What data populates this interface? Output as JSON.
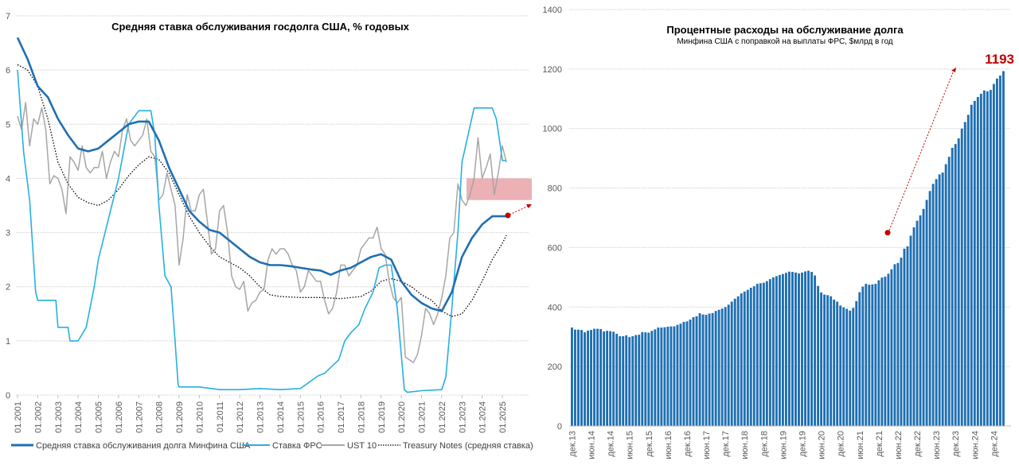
{
  "chart_data": [
    {
      "type": "line",
      "title": "Средняя ставка обслуживания госдолга США, % годовых",
      "xlabel": "",
      "ylabel": "",
      "ylim": [
        0,
        7
      ],
      "yticks": [
        "0",
        "1",
        "2",
        "3",
        "4",
        "5",
        "6",
        "7"
      ],
      "xlim": [
        2001.0,
        2025.6
      ],
      "xticks": [
        "01.2001",
        "01.2002",
        "01.2003",
        "01.2004",
        "01.2005",
        "01.2006",
        "01.2007",
        "01.2008",
        "01.2009",
        "01.2010",
        "01.2011",
        "01.2012",
        "01.2013",
        "01.2014",
        "01.2015",
        "01.2016",
        "01.2017",
        "01.2018",
        "01.2019",
        "01.2020",
        "01.2021",
        "01.2022",
        "01.2023",
        "01.2024",
        "01.2025"
      ],
      "grid": true,
      "legend_position": "bottom",
      "series": [
        {
          "name": "Средняя ставка обслуживания долга Минфина США",
          "color": "#1f6fb2",
          "style": "solid-thick",
          "x": [
            2001.0,
            2001.5,
            2002.0,
            2002.5,
            2003.0,
            2003.5,
            2004.0,
            2004.5,
            2005.0,
            2005.5,
            2006.0,
            2006.5,
            2007.0,
            2007.5,
            2008.0,
            2008.5,
            2009.0,
            2009.5,
            2010.0,
            2010.5,
            2011.0,
            2011.5,
            2012.0,
            2012.5,
            2013.0,
            2013.5,
            2014.0,
            2014.5,
            2015.0,
            2015.5,
            2016.0,
            2016.5,
            2017.0,
            2017.5,
            2018.0,
            2018.5,
            2019.0,
            2019.5,
            2020.0,
            2020.5,
            2021.0,
            2021.5,
            2022.0,
            2022.5,
            2023.0,
            2023.5,
            2024.0,
            2024.5,
            2025.0,
            2025.2
          ],
          "y": [
            6.6,
            6.2,
            5.7,
            5.5,
            5.1,
            4.8,
            4.55,
            4.5,
            4.55,
            4.7,
            4.85,
            5.0,
            5.05,
            5.05,
            4.7,
            4.2,
            3.8,
            3.4,
            3.2,
            3.05,
            3.0,
            2.85,
            2.7,
            2.55,
            2.45,
            2.4,
            2.4,
            2.38,
            2.35,
            2.32,
            2.3,
            2.22,
            2.3,
            2.35,
            2.45,
            2.55,
            2.6,
            2.5,
            2.1,
            1.85,
            1.7,
            1.6,
            1.55,
            1.9,
            2.55,
            2.9,
            3.15,
            3.3,
            3.3,
            3.3
          ]
        },
        {
          "name": "Ставка ФРС",
          "color": "#26b0e0",
          "style": "solid",
          "x": [
            2001.0,
            2001.3,
            2001.6,
            2001.9,
            2002.0,
            2002.5,
            2002.9,
            2003.0,
            2003.5,
            2003.6,
            2004.0,
            2004.4,
            2004.8,
            2005.0,
            2005.5,
            2006.0,
            2006.5,
            2007.0,
            2007.6,
            2007.8,
            2008.0,
            2008.3,
            2008.6,
            2008.8,
            2008.95,
            2009.0,
            2010.0,
            2011.0,
            2012.0,
            2013.0,
            2014.0,
            2015.0,
            2015.9,
            2016.2,
            2016.9,
            2017.2,
            2017.5,
            2017.9,
            2018.2,
            2018.6,
            2018.9,
            2019.2,
            2019.5,
            2019.8,
            2020.15,
            2020.3,
            2021.0,
            2022.0,
            2022.2,
            2022.5,
            2022.8,
            2023.0,
            2023.3,
            2023.6,
            2024.5,
            2024.7,
            2024.9,
            2025.0,
            2025.2
          ],
          "y": [
            6.0,
            4.5,
            3.6,
            1.9,
            1.75,
            1.75,
            1.75,
            1.25,
            1.25,
            1.0,
            1.0,
            1.25,
            2.0,
            2.5,
            3.25,
            4.0,
            5.0,
            5.25,
            5.25,
            4.8,
            3.5,
            2.2,
            2.0,
            1.0,
            0.2,
            0.15,
            0.15,
            0.1,
            0.1,
            0.12,
            0.1,
            0.12,
            0.36,
            0.4,
            0.65,
            1.0,
            1.15,
            1.3,
            1.6,
            1.9,
            2.35,
            2.4,
            2.4,
            1.6,
            0.1,
            0.05,
            0.08,
            0.1,
            0.33,
            1.6,
            3.0,
            4.3,
            4.8,
            5.3,
            5.3,
            5.1,
            4.6,
            4.33,
            4.33
          ]
        },
        {
          "name": "UST 10",
          "color": "#a6a6a6",
          "style": "solid",
          "x": [
            2001.0,
            2001.2,
            2001.4,
            2001.6,
            2001.8,
            2002.0,
            2002.2,
            2002.4,
            2002.6,
            2002.8,
            2003.0,
            2003.2,
            2003.4,
            2003.6,
            2003.8,
            2004.0,
            2004.2,
            2004.4,
            2004.6,
            2004.8,
            2005.0,
            2005.2,
            2005.4,
            2005.6,
            2005.8,
            2006.0,
            2006.2,
            2006.4,
            2006.6,
            2006.8,
            2007.0,
            2007.2,
            2007.4,
            2007.6,
            2007.8,
            2008.0,
            2008.2,
            2008.4,
            2008.6,
            2008.8,
            2009.0,
            2009.2,
            2009.4,
            2009.6,
            2009.8,
            2010.0,
            2010.2,
            2010.4,
            2010.6,
            2010.8,
            2011.0,
            2011.2,
            2011.4,
            2011.6,
            2011.8,
            2012.0,
            2012.2,
            2012.4,
            2012.6,
            2012.8,
            2013.0,
            2013.2,
            2013.4,
            2013.6,
            2013.8,
            2014.0,
            2014.2,
            2014.4,
            2014.6,
            2014.8,
            2015.0,
            2015.2,
            2015.4,
            2015.6,
            2015.8,
            2016.0,
            2016.2,
            2016.4,
            2016.6,
            2016.8,
            2017.0,
            2017.2,
            2017.4,
            2017.6,
            2017.8,
            2018.0,
            2018.2,
            2018.4,
            2018.6,
            2018.8,
            2019.0,
            2019.2,
            2019.4,
            2019.6,
            2019.8,
            2020.0,
            2020.2,
            2020.4,
            2020.6,
            2020.8,
            2021.0,
            2021.2,
            2021.4,
            2021.6,
            2021.8,
            2022.0,
            2022.2,
            2022.4,
            2022.6,
            2022.8,
            2023.0,
            2023.2,
            2023.4,
            2023.6,
            2023.8,
            2024.0,
            2024.2,
            2024.4,
            2024.6,
            2024.8,
            2025.0,
            2025.2
          ],
          "y": [
            5.15,
            4.9,
            5.4,
            4.6,
            5.1,
            5.0,
            5.3,
            4.9,
            3.9,
            4.05,
            4.0,
            3.8,
            3.35,
            4.4,
            4.3,
            4.15,
            4.6,
            4.2,
            4.1,
            4.2,
            4.2,
            4.5,
            4.0,
            4.3,
            4.5,
            4.4,
            4.9,
            5.1,
            4.7,
            4.6,
            4.7,
            4.8,
            5.1,
            4.5,
            4.4,
            3.6,
            3.7,
            4.1,
            3.8,
            3.5,
            2.4,
            2.9,
            3.7,
            3.4,
            3.4,
            3.7,
            3.8,
            3.2,
            2.6,
            2.7,
            3.4,
            3.5,
            3.0,
            2.2,
            2.0,
            1.95,
            2.1,
            1.55,
            1.7,
            1.75,
            1.9,
            1.95,
            2.5,
            2.7,
            2.6,
            2.7,
            2.7,
            2.6,
            2.4,
            2.3,
            1.9,
            2.0,
            2.3,
            2.2,
            2.1,
            2.1,
            1.75,
            1.5,
            1.6,
            1.9,
            2.4,
            2.4,
            2.2,
            2.3,
            2.4,
            2.7,
            2.8,
            2.9,
            2.9,
            3.1,
            2.7,
            2.6,
            2.1,
            1.8,
            1.7,
            1.8,
            0.7,
            0.65,
            0.6,
            0.75,
            1.1,
            1.6,
            1.5,
            1.3,
            1.5,
            1.8,
            2.2,
            2.9,
            3.0,
            3.9,
            3.6,
            3.5,
            3.7,
            4.0,
            4.75,
            4.0,
            4.2,
            4.45,
            3.7,
            4.1,
            4.6,
            4.3
          ]
        },
        {
          "name": "Treasury Notes (средняя ставка)",
          "color": "#000000",
          "style": "dotted",
          "x": [
            2001.0,
            2001.5,
            2002.0,
            2002.5,
            2003.0,
            2003.5,
            2004.0,
            2004.5,
            2005.0,
            2005.5,
            2006.0,
            2006.5,
            2007.0,
            2007.5,
            2008.0,
            2008.5,
            2009.0,
            2009.5,
            2010.0,
            2010.5,
            2011.0,
            2011.5,
            2012.0,
            2012.5,
            2013.0,
            2013.5,
            2014.0,
            2015.0,
            2016.0,
            2017.0,
            2018.0,
            2018.5,
            2019.0,
            2019.5,
            2020.0,
            2020.5,
            2021.0,
            2021.5,
            2022.0,
            2022.5,
            2023.0,
            2023.5,
            2024.0,
            2024.5,
            2025.0,
            2025.2
          ],
          "y": [
            6.1,
            6.0,
            5.7,
            5.1,
            4.3,
            3.9,
            3.65,
            3.55,
            3.5,
            3.6,
            3.8,
            4.05,
            4.25,
            4.4,
            4.35,
            4.1,
            3.7,
            3.3,
            3.0,
            2.75,
            2.55,
            2.45,
            2.35,
            2.2,
            2.0,
            1.85,
            1.82,
            1.8,
            1.8,
            1.78,
            1.82,
            1.92,
            2.1,
            2.15,
            2.1,
            2.0,
            1.85,
            1.75,
            1.55,
            1.45,
            1.5,
            1.75,
            2.1,
            2.5,
            2.8,
            2.95
          ]
        }
      ],
      "annotations": [
        {
          "type": "band",
          "x_from": 2023.2,
          "x_to": 2026.4,
          "y_from": 3.6,
          "y_to": 4.0,
          "color": "#e9a9ad"
        },
        {
          "type": "point",
          "x": 2025.4,
          "y": 3.32,
          "color": "#c00000"
        },
        {
          "type": "arrow",
          "x_from": 2025.4,
          "y_from": 3.32,
          "x_to": 2026.5,
          "y_to": 3.55,
          "color": "#c00000"
        }
      ]
    },
    {
      "type": "bar",
      "title": "Процентные расходы на обслуживание долга",
      "subtitle": "Минфина США с поправкой на выплаты ФРС, $млрд в год",
      "xlabel": "",
      "ylabel": "",
      "ylim": [
        0,
        1400
      ],
      "yticks": [
        "0",
        "200",
        "400",
        "600",
        "800",
        "1000",
        "1200",
        "1400"
      ],
      "tick_labels": [
        "дек.13",
        "июн.14",
        "дек.14",
        "июн.15",
        "дек.15",
        "июн.16",
        "дек.16",
        "июн.17",
        "дек.17",
        "июн.18",
        "дек.18",
        "июн.19",
        "дек.19",
        "июн.20",
        "дек.20",
        "июн.21",
        "дек.21",
        "июн.22",
        "дек.22",
        "июн.23",
        "дек.23",
        "июн.24",
        "дек.24"
      ],
      "grid": true,
      "color": "#1f6fb2",
      "values": [
        331,
        324,
        324,
        323,
        315,
        321,
        323,
        327,
        327,
        326,
        318,
        320,
        319,
        317,
        310,
        302,
        302,
        305,
        299,
        302,
        306,
        307,
        316,
        315,
        314,
        320,
        325,
        331,
        331,
        332,
        334,
        335,
        335,
        340,
        344,
        350,
        352,
        358,
        366,
        369,
        379,
        375,
        374,
        378,
        380,
        387,
        391,
        395,
        400,
        408,
        418,
        428,
        436,
        446,
        452,
        458,
        465,
        470,
        478,
        480,
        482,
        487,
        494,
        500,
        504,
        508,
        511,
        515,
        519,
        518,
        516,
        513,
        516,
        520,
        522,
        518,
        506,
        471,
        449,
        442,
        440,
        436,
        425,
        418,
        405,
        399,
        394,
        388,
        397,
        420,
        450,
        469,
        478,
        475,
        476,
        478,
        490,
        499,
        502,
        512,
        527,
        544,
        548,
        566,
        596,
        604,
        640,
        668,
        690,
        708,
        730,
        760,
        790,
        814,
        830,
        846,
        852,
        880,
        905,
        935,
        948,
        967,
        1000,
        1022,
        1046,
        1080,
        1093,
        1106,
        1117,
        1128,
        1125,
        1130,
        1150,
        1168,
        1178,
        1193
      ],
      "annotations": [
        {
          "type": "label",
          "text": "1193",
          "color": "#c00000"
        },
        {
          "type": "point",
          "x_index": 91,
          "y": 650,
          "color": "#c00000"
        },
        {
          "type": "arrow",
          "x_index_from": 91,
          "y_from": 650,
          "x_index_to": 130,
          "y_to": 1200,
          "color": "#c00000"
        }
      ]
    }
  ]
}
